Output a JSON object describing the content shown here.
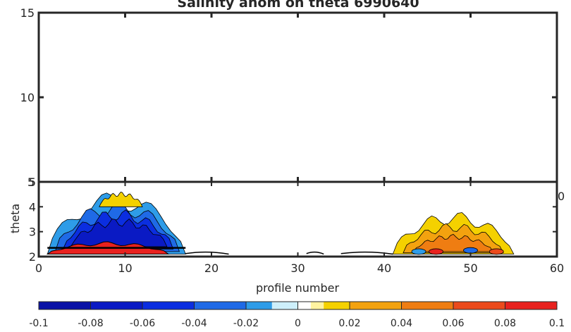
{
  "chart_data": [
    {
      "type": "contour",
      "title": "Salinity anom on theta     6990640",
      "xlabel": "",
      "ylabel": "",
      "xlim": [
        0,
        60
      ],
      "ylim": [
        5,
        15
      ],
      "xticks": [
        0,
        10,
        20,
        30,
        40,
        50,
        60
      ],
      "yticks": [
        {
          "value": 5,
          "label": "5"
        },
        {
          "value": 10,
          "label": "10"
        },
        {
          "value": 15,
          "label": "15"
        }
      ],
      "x_tick_labels_visible": [
        {
          "value": 60,
          "label": "0"
        }
      ],
      "grid": false,
      "series": []
    },
    {
      "type": "contour",
      "title": "",
      "xlabel": "profile number",
      "ylabel": "theta",
      "xlim": [
        0,
        60
      ],
      "ylim": [
        2,
        5
      ],
      "xticks": [
        {
          "value": 0,
          "label": "0"
        },
        {
          "value": 10,
          "label": "10"
        },
        {
          "value": 20,
          "label": "20"
        },
        {
          "value": 30,
          "label": "30"
        },
        {
          "value": 40,
          "label": "40"
        },
        {
          "value": 50,
          "label": "50"
        },
        {
          "value": 60,
          "label": "60"
        }
      ],
      "yticks": [
        {
          "value": 2,
          "label": "2"
        },
        {
          "value": 3,
          "label": "3"
        },
        {
          "value": 4,
          "label": "4"
        },
        {
          "value": 5,
          "label": "5"
        }
      ],
      "grid": false,
      "colorbar": {
        "range": [
          -0.1,
          0.1
        ],
        "ticks": [
          {
            "value": -0.1,
            "label": "-0.1"
          },
          {
            "value": -0.08,
            "label": "-0.08"
          },
          {
            "value": -0.06,
            "label": "-0.06"
          },
          {
            "value": -0.04,
            "label": "-0.04"
          },
          {
            "value": -0.02,
            "label": "-0.02"
          },
          {
            "value": 0,
            "label": "0"
          },
          {
            "value": 0.02,
            "label": "0.02"
          },
          {
            "value": 0.04,
            "label": "0.04"
          },
          {
            "value": 0.06,
            "label": "0.06"
          },
          {
            "value": 0.08,
            "label": "0.08"
          },
          {
            "value": 0.1,
            "label": "0.1"
          }
        ],
        "levels": [
          {
            "from": -0.1,
            "to": -0.08,
            "color": "#0a12a6"
          },
          {
            "from": -0.08,
            "to": -0.06,
            "color": "#0a1ac4"
          },
          {
            "from": -0.06,
            "to": -0.04,
            "color": "#0b2ee0"
          },
          {
            "from": -0.04,
            "to": -0.02,
            "color": "#1f6ae6"
          },
          {
            "from": -0.02,
            "to": -0.01,
            "color": "#2e9ce8"
          },
          {
            "from": -0.01,
            "to": 0,
            "color": "#cdeffb"
          },
          {
            "from": 0,
            "to": 0.005,
            "color": "#ffffff"
          },
          {
            "from": 0.005,
            "to": 0.01,
            "color": "#fff3a0"
          },
          {
            "from": 0.01,
            "to": 0.02,
            "color": "#f4d100"
          },
          {
            "from": 0.02,
            "to": 0.04,
            "color": "#f3a20f"
          },
          {
            "from": 0.04,
            "to": 0.06,
            "color": "#ef7d12"
          },
          {
            "from": 0.06,
            "to": 0.08,
            "color": "#eb4a1c"
          },
          {
            "from": 0.08,
            "to": 0.1,
            "color": "#e8211e"
          }
        ]
      },
      "regions": [
        {
          "name": "negative-anomaly-cluster",
          "value": -0.07,
          "x": [
            1,
            17
          ],
          "y": [
            2.1,
            4.6
          ]
        },
        {
          "name": "positive-anomaly-base",
          "value": 0.09,
          "x": [
            1,
            15
          ],
          "y": [
            2.1,
            2.6
          ]
        },
        {
          "name": "positive-anomaly-cluster",
          "value": 0.03,
          "x": [
            41,
            55
          ],
          "y": [
            2.1,
            3.8
          ]
        }
      ]
    }
  ],
  "colors": {
    "axis": "#262626",
    "background": "#ffffff"
  }
}
